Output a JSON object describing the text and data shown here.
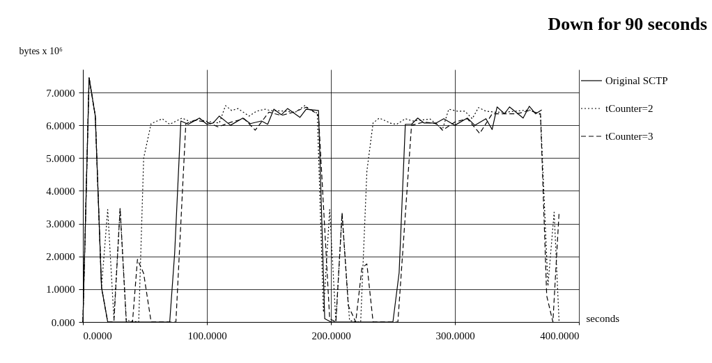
{
  "chart_data": {
    "type": "line",
    "title": "Down for 90 seconds",
    "xlabel": "seconds",
    "ylabel": "bytes x 10⁶",
    "xlim": [
      0,
      400
    ],
    "ylim": [
      0,
      7.7
    ],
    "xticks": [
      {
        "value": 0,
        "label": "0.0000"
      },
      {
        "value": 100,
        "label": "100.0000"
      },
      {
        "value": 200,
        "label": "200.0000"
      },
      {
        "value": 300,
        "label": "300.0000"
      },
      {
        "value": 400,
        "label": "400.0000"
      }
    ],
    "yticks": [
      {
        "value": 0,
        "label": "0.000"
      },
      {
        "value": 1,
        "label": "1.0000"
      },
      {
        "value": 2,
        "label": "2.0000"
      },
      {
        "value": 3,
        "label": "3.0000"
      },
      {
        "value": 4,
        "label": "4.0000"
      },
      {
        "value": 5,
        "label": "5.0000"
      },
      {
        "value": 6,
        "label": "6.0000"
      },
      {
        "value": 7,
        "label": "7.0000"
      }
    ],
    "grid": true,
    "legend": "right",
    "series": [
      {
        "name": "Original SCTP",
        "color": "#000000",
        "line_style": "solid",
        "x": [
          0,
          5,
          10,
          15,
          20,
          70,
          74,
          79,
          85,
          94,
          100,
          105,
          110,
          119,
          129,
          135,
          144,
          149,
          154,
          160,
          165,
          175,
          180,
          190,
          195,
          200,
          250,
          255,
          260,
          265,
          270,
          275,
          285,
          291,
          300,
          310,
          316,
          325,
          330,
          334,
          340,
          344,
          355,
          360,
          365,
          370
        ],
        "values": [
          0,
          7.45,
          6.28,
          1.06,
          0,
          0,
          2.1,
          6.13,
          6.03,
          6.22,
          6.03,
          6.07,
          6.28,
          6.0,
          6.22,
          6.05,
          6.13,
          6.03,
          6.49,
          6.32,
          6.51,
          6.24,
          6.49,
          6.45,
          0.1,
          0,
          0,
          1.5,
          6.03,
          6.03,
          6.22,
          6.07,
          6.07,
          6.2,
          6.0,
          6.22,
          6.0,
          6.2,
          5.87,
          6.56,
          6.35,
          6.56,
          6.22,
          6.58,
          6.35,
          6.47
        ]
      },
      {
        "name": "tCounter=2",
        "color": "#000000",
        "line_style": "dotted",
        "x": [
          0,
          5,
          10,
          15,
          20,
          25,
          30,
          35,
          45,
          49,
          55,
          64,
          70,
          80,
          87,
          94,
          98,
          110,
          115,
          120,
          125,
          134,
          140,
          147,
          151,
          164,
          171,
          179,
          184,
          189,
          194,
          199,
          204,
          209,
          215,
          220,
          224,
          229,
          234,
          239,
          249,
          253,
          260,
          266,
          280,
          290,
          295,
          302,
          308,
          314,
          319,
          325,
          332,
          341,
          360,
          369,
          375,
          380,
          384
        ],
        "values": [
          0,
          7.45,
          6.28,
          1.06,
          3.43,
          0.1,
          3.46,
          0.05,
          0,
          5.0,
          6.05,
          6.2,
          6.03,
          6.22,
          6.1,
          6.2,
          6.13,
          6.07,
          6.6,
          6.45,
          6.51,
          6.28,
          6.43,
          6.49,
          6.45,
          6.43,
          6.39,
          6.6,
          6.45,
          6.37,
          0.3,
          3.43,
          0,
          3.3,
          0.05,
          0,
          0,
          4.6,
          6.07,
          6.22,
          6.05,
          6.03,
          6.2,
          6.13,
          6.19,
          5.88,
          6.49,
          6.43,
          6.43,
          6.2,
          6.54,
          6.43,
          6.4,
          6.4,
          6.47,
          6.33,
          1.1,
          3.35,
          0
        ]
      },
      {
        "name": "tCounter=3",
        "color": "#000000",
        "line_style": "dashed",
        "x": [
          0,
          5,
          10,
          15,
          20,
          25,
          30,
          35,
          40,
          44,
          49,
          55,
          75,
          83,
          90,
          100,
          109,
          120,
          130,
          139,
          150,
          160,
          170,
          180,
          185,
          190,
          199,
          204,
          209,
          214,
          220,
          225,
          229,
          234,
          254,
          265,
          275,
          285,
          290,
          300,
          310,
          320,
          330,
          340,
          350,
          360,
          369,
          374,
          379,
          384
        ],
        "values": [
          0,
          7.45,
          6.28,
          1.06,
          0,
          0,
          3.46,
          0,
          0,
          1.91,
          1.48,
          0,
          0,
          6.05,
          6.15,
          6.1,
          5.95,
          6.1,
          6.2,
          5.85,
          6.4,
          6.3,
          6.4,
          6.55,
          6.45,
          6.3,
          0.1,
          0,
          3.32,
          0.5,
          0,
          1.65,
          1.77,
          0,
          0,
          6.0,
          6.1,
          6.05,
          5.85,
          6.1,
          6.2,
          5.75,
          6.35,
          6.35,
          6.35,
          6.45,
          6.35,
          0.8,
          0,
          3.35
        ]
      }
    ]
  }
}
